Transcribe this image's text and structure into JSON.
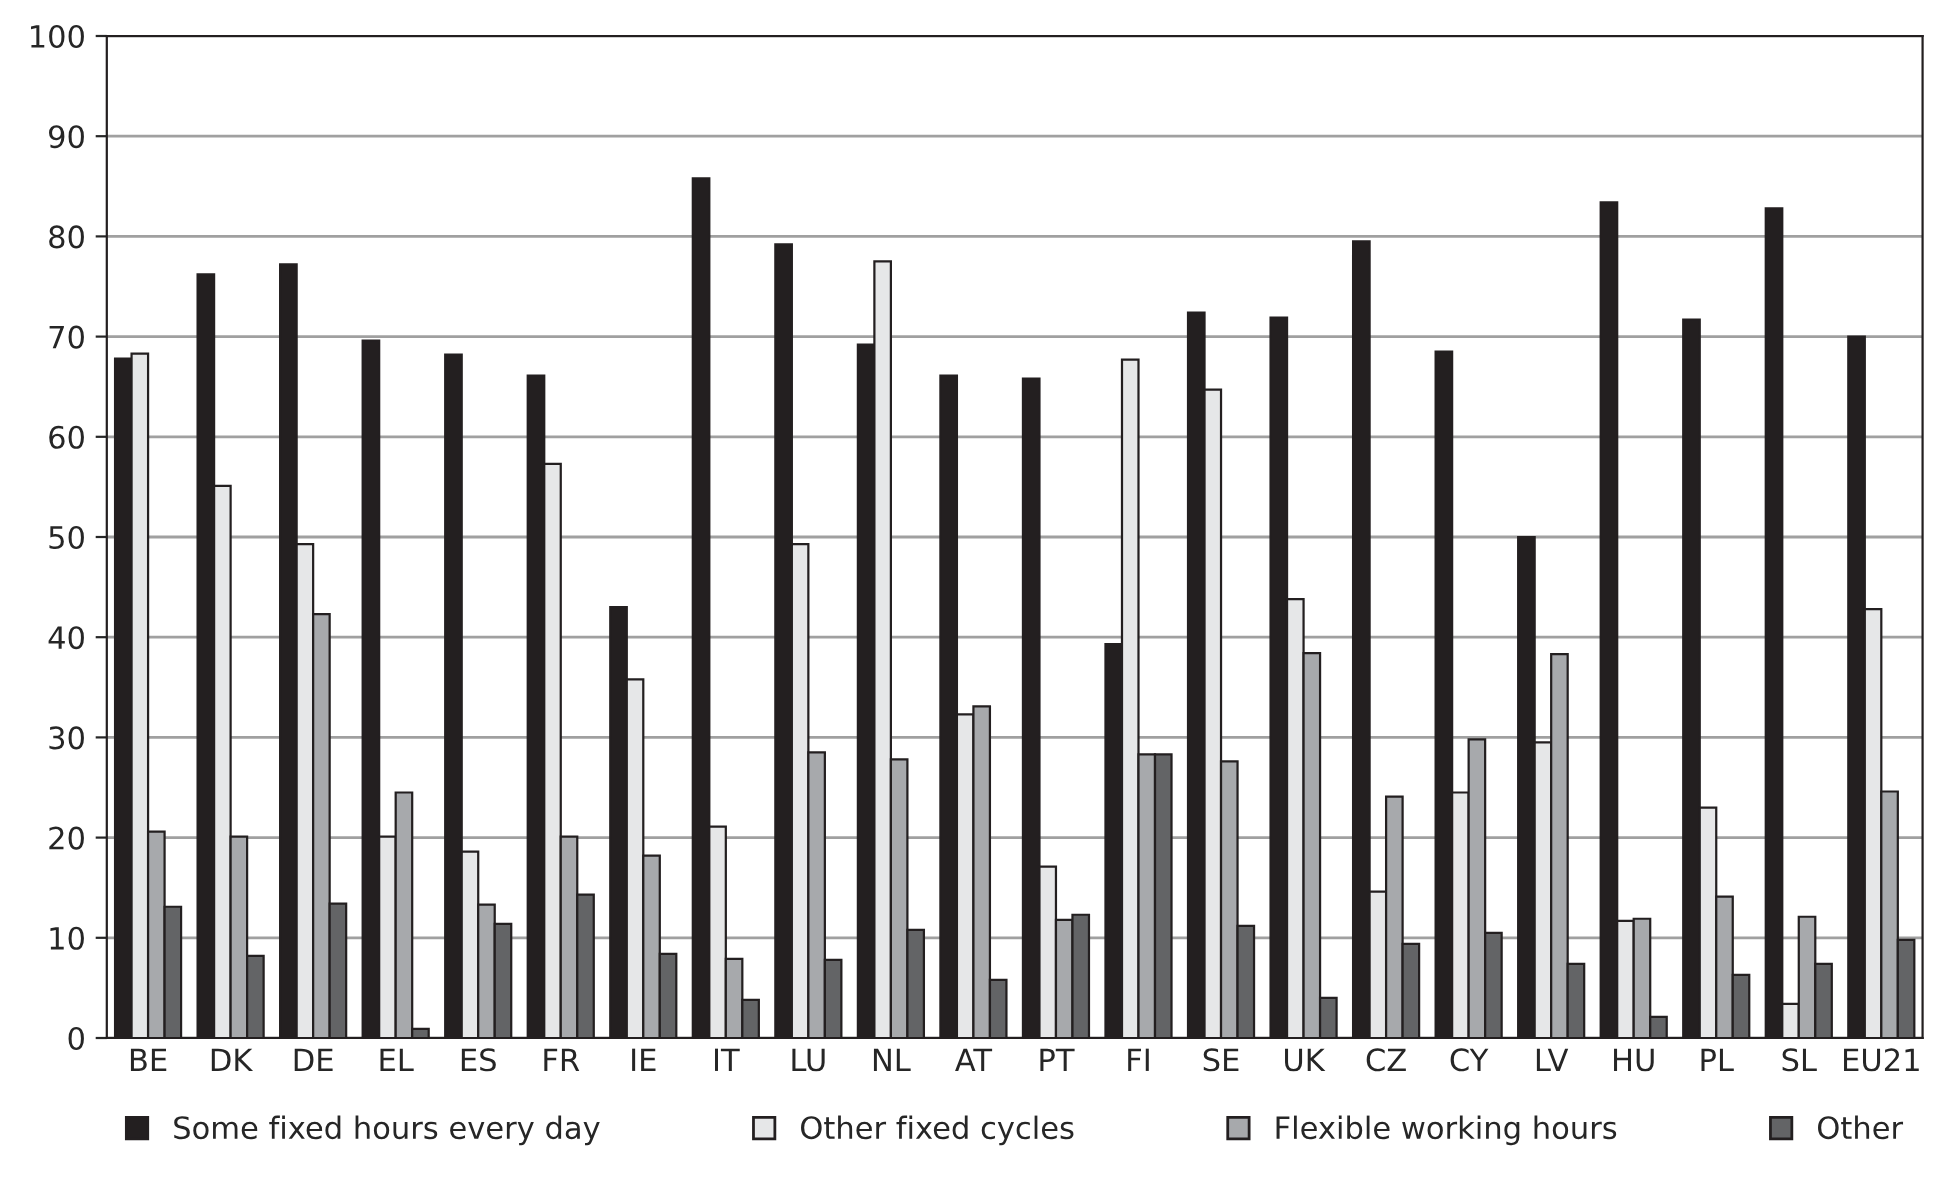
{
  "chart_data": {
    "type": "bar",
    "categories": [
      "BE",
      "DK",
      "DE",
      "EL",
      "ES",
      "FR",
      "IE",
      "IT",
      "LU",
      "NL",
      "AT",
      "PT",
      "FI",
      "SE",
      "UK",
      "CZ",
      "CY",
      "LV",
      "HU",
      "PL",
      "SL",
      "EU21"
    ],
    "series": [
      {
        "name": "Some fixed hours every day",
        "color": "#231f20",
        "values": [
          67.8,
          76.2,
          77.2,
          69.6,
          68.2,
          66.1,
          43,
          85.8,
          79.2,
          69.2,
          66.1,
          65.8,
          39.3,
          72.4,
          71.9,
          79.5,
          68.5,
          50,
          83.4,
          71.7,
          82.8,
          70
        ]
      },
      {
        "name": "Other fixed cycles",
        "color": "#e6e7e8",
        "values": [
          68.3,
          55.1,
          49.3,
          20.1,
          18.6,
          57.3,
          35.8,
          21.1,
          49.3,
          77.5,
          32.3,
          17.1,
          67.7,
          64.7,
          43.8,
          14.6,
          24.5,
          29.5,
          11.7,
          23,
          3.4,
          42.8
        ]
      },
      {
        "name": "Flexible working hours",
        "color": "#a7a9ac",
        "values": [
          20.6,
          20.1,
          42.3,
          24.5,
          13.3,
          20.1,
          18.2,
          7.9,
          28.5,
          27.8,
          33.1,
          11.8,
          28.3,
          27.6,
          38.4,
          24.1,
          29.8,
          38.3,
          11.9,
          14.1,
          12.1,
          24.6
        ]
      },
      {
        "name": "Other",
        "color": "#636466",
        "values": [
          13.1,
          8.2,
          13.4,
          0.9,
          11.4,
          14.3,
          8.4,
          3.8,
          7.8,
          10.8,
          5.8,
          12.3,
          28.3,
          11.2,
          4,
          9.4,
          10.5,
          7.4,
          2.1,
          6.3,
          7.4,
          9.8
        ]
      }
    ],
    "ylim": [
      0,
      100
    ],
    "yticks": [
      0,
      10,
      20,
      30,
      40,
      50,
      60,
      70,
      80,
      90,
      100
    ],
    "grid": "y",
    "legend": "bottom"
  }
}
